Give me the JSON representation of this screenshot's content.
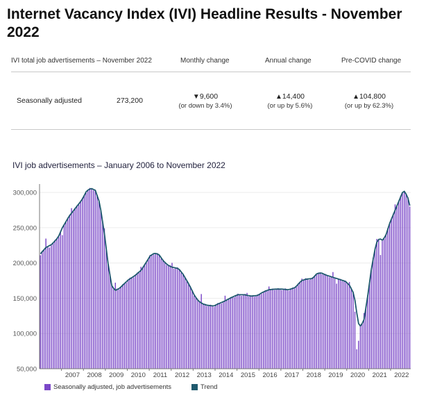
{
  "page": {
    "title": "Internet Vacancy Index (IVI) Headline Results - November 2022"
  },
  "summary": {
    "headers": {
      "label": "IVI total job advertisements – November 2022",
      "monthly": "Monthly change",
      "annual": "Annual change",
      "precovid": "Pre-COVID change"
    },
    "row": {
      "label": "Seasonally adjusted",
      "value": "273,200",
      "monthly_arrow": "▼",
      "monthly_value": "9,600",
      "monthly_sub": "(or down by 3.4%)",
      "annual_arrow": "▲",
      "annual_value": "14,400",
      "annual_sub": "(or up by 5.6%)",
      "precovid_arrow": "▲",
      "precovid_value": "104,800",
      "precovid_sub": "(or up by 62.3%)"
    }
  },
  "colors": {
    "bar": "#7b48c8",
    "trend": "#1f5a6e",
    "axis": "#777777",
    "title": "#1e1e3a"
  },
  "chart_data": {
    "type": "bar",
    "title": "IVI job advertisements – January 2006 to November 2022",
    "xlabel": "",
    "ylabel": "",
    "ylim": [
      50000,
      310000
    ],
    "yticks": [
      50000,
      100000,
      150000,
      200000,
      250000,
      300000
    ],
    "ytick_labels": [
      "50,000",
      "100,000",
      "150,000",
      "200,000",
      "250,000",
      "300,000"
    ],
    "xtick_labels": [
      "2007",
      "2008",
      "2009",
      "2010",
      "2011",
      "2012",
      "2013",
      "2014",
      "2015",
      "2016",
      "2017",
      "2018",
      "2019",
      "2020",
      "2021",
      "2022"
    ],
    "start": {
      "year": 2006,
      "month": 1
    },
    "end": {
      "year": 2022,
      "month": 11
    },
    "trend_anchors": [
      [
        2006.0,
        213000
      ],
      [
        2006.25,
        222000
      ],
      [
        2006.5,
        226000
      ],
      [
        2006.8,
        236000
      ],
      [
        2007.0,
        250000
      ],
      [
        2007.3,
        266000
      ],
      [
        2007.6,
        278000
      ],
      [
        2007.9,
        290000
      ],
      [
        2008.1,
        302000
      ],
      [
        2008.3,
        306000
      ],
      [
        2008.5,
        303000
      ],
      [
        2008.7,
        285000
      ],
      [
        2008.9,
        245000
      ],
      [
        2009.1,
        195000
      ],
      [
        2009.25,
        168000
      ],
      [
        2009.4,
        161000
      ],
      [
        2009.6,
        164000
      ],
      [
        2009.8,
        170000
      ],
      [
        2010.0,
        176000
      ],
      [
        2010.3,
        182000
      ],
      [
        2010.6,
        190000
      ],
      [
        2010.8,
        200000
      ],
      [
        2011.0,
        210000
      ],
      [
        2011.2,
        214000
      ],
      [
        2011.4,
        212000
      ],
      [
        2011.6,
        203000
      ],
      [
        2011.8,
        197000
      ],
      [
        2012.0,
        194000
      ],
      [
        2012.3,
        192000
      ],
      [
        2012.5,
        184000
      ],
      [
        2012.8,
        168000
      ],
      [
        2013.0,
        155000
      ],
      [
        2013.2,
        146000
      ],
      [
        2013.4,
        142000
      ],
      [
        2013.6,
        140000
      ],
      [
        2013.9,
        139000
      ],
      [
        2014.1,
        142000
      ],
      [
        2014.4,
        146000
      ],
      [
        2014.7,
        151000
      ],
      [
        2015.0,
        155000
      ],
      [
        2015.3,
        155000
      ],
      [
        2015.6,
        153000
      ],
      [
        2015.9,
        154000
      ],
      [
        2016.1,
        158000
      ],
      [
        2016.4,
        162000
      ],
      [
        2016.7,
        163000
      ],
      [
        2017.0,
        163000
      ],
      [
        2017.3,
        162000
      ],
      [
        2017.6,
        165000
      ],
      [
        2017.9,
        175000
      ],
      [
        2018.1,
        177000
      ],
      [
        2018.4,
        178000
      ],
      [
        2018.6,
        185000
      ],
      [
        2018.8,
        186000
      ],
      [
        2019.0,
        183000
      ],
      [
        2019.3,
        180000
      ],
      [
        2019.6,
        177000
      ],
      [
        2019.9,
        174000
      ],
      [
        2020.1,
        168000
      ],
      [
        2020.3,
        155000
      ],
      [
        2020.4,
        132000
      ],
      [
        2020.5,
        114000
      ],
      [
        2020.6,
        110000
      ],
      [
        2020.75,
        120000
      ],
      [
        2020.9,
        150000
      ],
      [
        2021.1,
        195000
      ],
      [
        2021.3,
        228000
      ],
      [
        2021.45,
        235000
      ],
      [
        2021.6,
        232000
      ],
      [
        2021.75,
        240000
      ],
      [
        2021.9,
        255000
      ],
      [
        2022.1,
        270000
      ],
      [
        2022.3,
        285000
      ],
      [
        2022.5,
        300000
      ],
      [
        2022.6,
        302000
      ],
      [
        2022.75,
        292000
      ],
      [
        2022.875,
        276000
      ]
    ],
    "bar_offsets": [
      [
        2006.0,
        -2000
      ],
      [
        2006.25,
        14000
      ],
      [
        2006.45,
        -4000
      ],
      [
        2007.0,
        -12000
      ],
      [
        2007.4,
        8000
      ],
      [
        2008.9,
        8000
      ],
      [
        2009.4,
        10000
      ],
      [
        2010.6,
        6000
      ],
      [
        2012.0,
        6000
      ],
      [
        2013.3,
        14000
      ],
      [
        2014.4,
        6000
      ],
      [
        2015.4,
        4000
      ],
      [
        2016.4,
        6000
      ],
      [
        2017.9,
        4000
      ],
      [
        2019.3,
        6000
      ],
      [
        2019.5,
        -6000
      ],
      [
        2020.1,
        6000
      ],
      [
        2020.3,
        -16000
      ],
      [
        2020.4,
        -50000
      ],
      [
        2020.5,
        -25000
      ],
      [
        2020.75,
        10000
      ],
      [
        2021.3,
        6000
      ],
      [
        2021.5,
        -24000
      ],
      [
        2022.2,
        8000
      ]
    ],
    "legend": {
      "bars": "Seasonally adjusted, job advertisements",
      "trend": "Trend"
    }
  }
}
